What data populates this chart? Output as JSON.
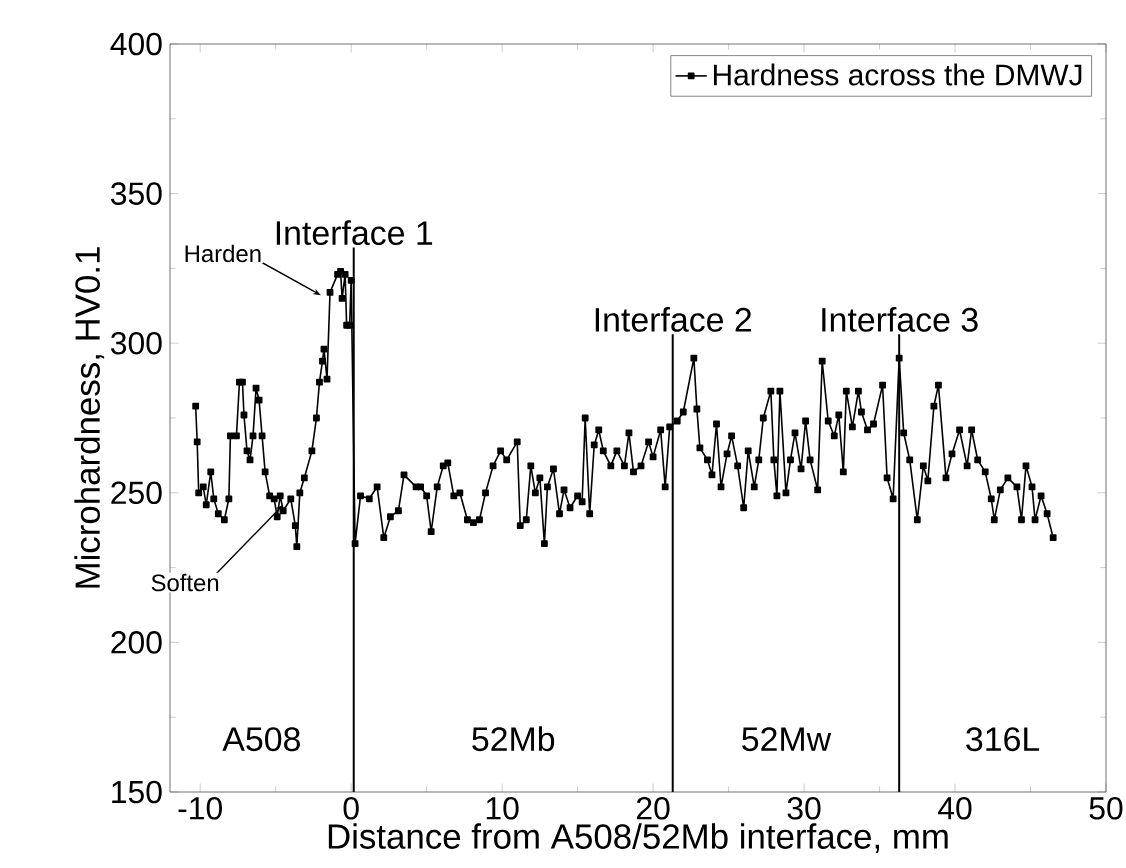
{
  "chart_data": {
    "type": "line",
    "xlabel": "Distance from A508/52Mb interface, mm",
    "ylabel": "Microhardness, HV0.1",
    "xlim": [
      -12,
      50
    ],
    "ylim": [
      150,
      400
    ],
    "xticks": [
      -10,
      0,
      10,
      20,
      30,
      40,
      50
    ],
    "yticks": [
      150,
      200,
      250,
      300,
      350,
      400
    ],
    "legend": "top right",
    "marker": "square",
    "line_style": "solid",
    "series": [
      {
        "name": "Hardness across the DMWJ",
        "color": "#000000",
        "x": [
          -10.3,
          -10.2,
          -10.1,
          -9.8,
          -9.6,
          -9.3,
          -9.1,
          -8.8,
          -8.4,
          -8.1,
          -8.0,
          -7.6,
          -7.4,
          -7.2,
          -7.1,
          -6.9,
          -6.7,
          -6.5,
          -6.3,
          -6.1,
          -5.9,
          -5.7,
          -5.4,
          -5.1,
          -4.9,
          -4.7,
          -4.5,
          -4.0,
          -3.7,
          -3.6,
          -3.4,
          -3.1,
          -2.6,
          -2.3,
          -2.1,
          -1.9,
          -1.8,
          -1.6,
          -1.4,
          -0.9,
          -0.7,
          -0.6,
          -0.4,
          -0.3,
          -0.1,
          0.0,
          0.26,
          0.62,
          1.2,
          1.72,
          2.16,
          2.6,
          3.13,
          3.5,
          4.3,
          4.6,
          5.0,
          5.3,
          5.7,
          6.1,
          6.4,
          6.8,
          7.2,
          7.7,
          8.1,
          8.5,
          8.9,
          9.4,
          9.9,
          10.3,
          11.0,
          11.2,
          11.6,
          11.9,
          12.2,
          12.5,
          12.8,
          13.0,
          13.4,
          13.8,
          14.1,
          14.5,
          15.0,
          15.3,
          15.5,
          15.8,
          16.1,
          16.4,
          16.7,
          17.2,
          17.6,
          18.1,
          18.4,
          18.7,
          19.2,
          19.7,
          20.0,
          20.5,
          20.8,
          21.1,
          21.6,
          22.0,
          22.7,
          22.9,
          23.1,
          23.6,
          23.9,
          24.2,
          24.5,
          24.9,
          25.2,
          25.6,
          26.0,
          26.3,
          26.7,
          27.0,
          27.3,
          27.8,
          28.0,
          28.2,
          28.4,
          28.8,
          29.1,
          29.4,
          29.8,
          30.1,
          30.4,
          30.9,
          31.2,
          31.6,
          32.0,
          32.3,
          32.6,
          32.8,
          33.2,
          33.6,
          33.8,
          34.2,
          34.6,
          35.2,
          35.5,
          35.9,
          36.3,
          36.6,
          37.0,
          37.5,
          37.9,
          38.2,
          38.6,
          38.9,
          39.4,
          39.8,
          40.3,
          40.8,
          41.1,
          41.5,
          42.0,
          42.4,
          42.6,
          43.0,
          43.5,
          44.1,
          44.4,
          44.7,
          45.1,
          45.3,
          45.7,
          46.1,
          46.5
        ],
        "values": [
          279,
          267,
          250,
          252,
          246,
          257,
          248,
          243,
          241,
          248,
          269,
          269,
          287,
          287,
          276,
          264,
          261,
          269,
          285,
          281,
          269,
          257,
          249,
          248,
          242,
          249,
          244,
          248,
          239,
          232,
          250,
          255,
          264,
          275,
          287,
          294,
          298,
          288,
          317,
          323,
          324,
          315,
          323,
          306,
          306,
          321,
          233,
          249,
          248,
          252,
          235,
          242,
          244,
          256,
          252,
          252,
          249,
          237,
          252,
          259,
          260,
          249,
          250,
          241,
          240,
          241,
          250,
          259,
          264,
          261,
          267,
          239,
          241,
          259,
          250,
          255,
          233,
          252,
          258,
          243,
          251,
          245,
          249,
          247,
          275,
          243,
          266,
          271,
          264,
          259,
          264,
          259,
          270,
          257,
          259,
          267,
          262,
          271,
          252,
          272,
          274,
          277,
          295,
          278,
          265,
          261,
          256,
          273,
          252,
          263,
          269,
          259,
          245,
          264,
          252,
          261,
          275,
          284,
          261,
          249,
          284,
          250,
          261,
          270,
          258,
          274,
          261,
          251,
          294,
          274,
          269,
          276,
          257,
          284,
          272,
          284,
          277,
          271,
          273,
          286,
          255,
          248,
          295,
          270,
          261,
          241,
          259,
          254,
          279,
          286,
          255,
          263,
          271,
          259,
          271,
          261,
          257,
          248,
          241,
          251,
          255,
          252,
          241,
          259,
          252,
          241,
          249,
          243,
          235
        ]
      }
    ],
    "ref_lines": [
      {
        "axis": "x",
        "value": 0.17,
        "label": "Interface 1"
      },
      {
        "axis": "x",
        "value": 21.3,
        "label": "Interface 2"
      },
      {
        "axis": "x",
        "value": 36.3,
        "label": "Interface 3"
      }
    ],
    "annotations": [
      "A508",
      "52Mb",
      "52Mw",
      "316L",
      {
        "text": "Harden",
        "x": -2,
        "y": 316
      },
      {
        "text": "Soften",
        "x": -4.5,
        "y": 246
      }
    ]
  }
}
